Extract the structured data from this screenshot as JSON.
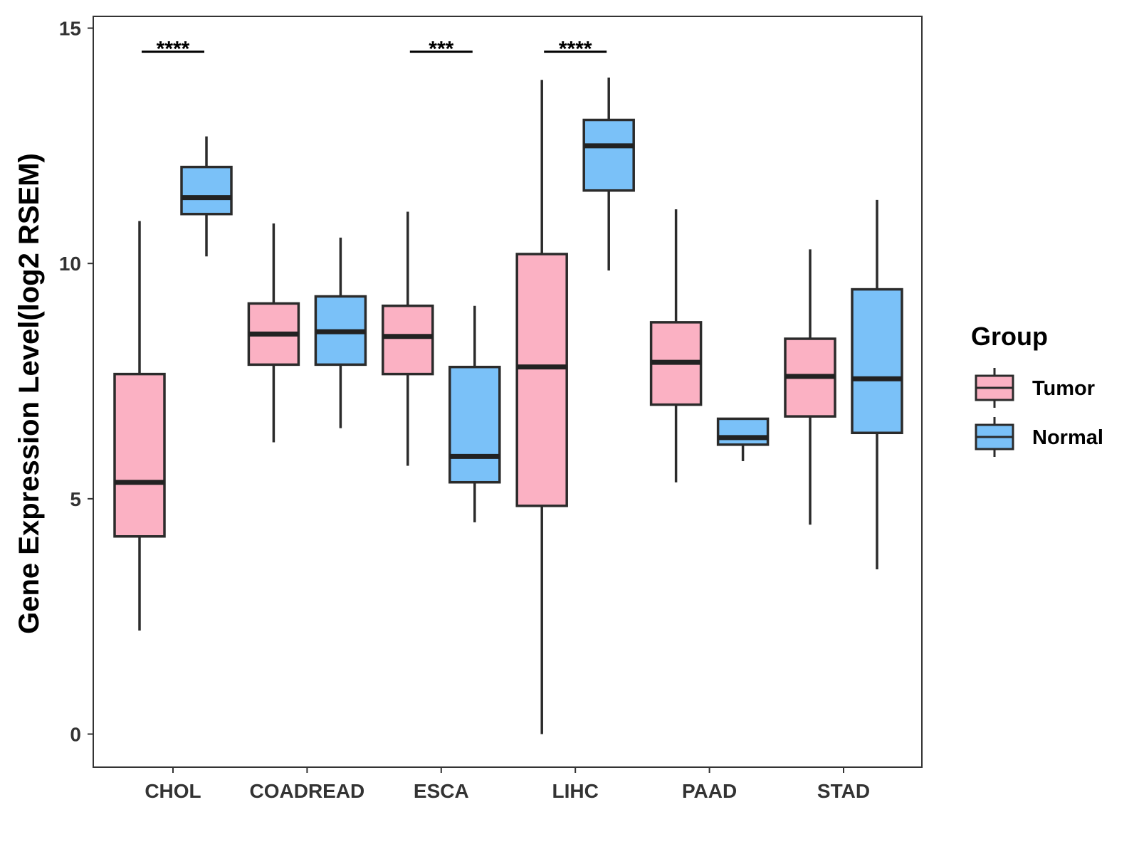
{
  "chart_data": {
    "type": "boxplot",
    "title": "",
    "xlabel": "",
    "ylabel": "Gene Expression Level(log2 RSEM)",
    "ylim": [
      -0.7,
      15.3
    ],
    "yticks": [
      "0",
      "5",
      "10",
      "15"
    ],
    "ytick_values": [
      0,
      5,
      10,
      15
    ],
    "categories": [
      "CHOL",
      "COADREAD",
      "ESCA",
      "LIHC",
      "PAAD",
      "STAD"
    ],
    "series": [
      {
        "name": "Tumor",
        "color": "#FBB1C3",
        "boxes": [
          {
            "min": 2.2,
            "q1": 4.2,
            "median": 5.35,
            "q3": 7.65,
            "max": 10.9
          },
          {
            "min": 6.2,
            "q1": 7.85,
            "median": 8.5,
            "q3": 9.15,
            "max": 10.85
          },
          {
            "min": 5.7,
            "q1": 7.65,
            "median": 8.45,
            "q3": 9.1,
            "max": 11.1
          },
          {
            "min": 0.0,
            "q1": 4.85,
            "median": 7.8,
            "q3": 10.2,
            "max": 13.9
          },
          {
            "min": 5.35,
            "q1": 7.0,
            "median": 7.9,
            "q3": 8.75,
            "max": 11.15
          },
          {
            "min": 4.45,
            "q1": 6.75,
            "median": 7.6,
            "q3": 8.4,
            "max": 10.3
          }
        ]
      },
      {
        "name": "Normal",
        "color": "#7AC1F8",
        "boxes": [
          {
            "min": 10.15,
            "q1": 11.05,
            "median": 11.4,
            "q3": 12.05,
            "max": 12.7
          },
          {
            "min": 6.5,
            "q1": 7.85,
            "median": 8.55,
            "q3": 9.3,
            "max": 10.55
          },
          {
            "min": 4.5,
            "q1": 5.35,
            "median": 5.9,
            "q3": 7.8,
            "max": 9.1
          },
          {
            "min": 9.85,
            "q1": 11.55,
            "median": 12.5,
            "q3": 13.05,
            "max": 13.95
          },
          {
            "min": 5.8,
            "q1": 6.15,
            "median": 6.3,
            "q3": 6.7,
            "max": 6.7
          },
          {
            "min": 3.5,
            "q1": 6.4,
            "median": 7.55,
            "q3": 9.45,
            "max": 11.35
          }
        ]
      }
    ],
    "annotations": [
      {
        "category": "CHOL",
        "label": "****",
        "y": 14.5
      },
      {
        "category": "ESCA",
        "label": "***",
        "y": 14.5
      },
      {
        "category": "LIHC",
        "label": "****",
        "y": 14.5
      }
    ],
    "legend": {
      "title": "Group",
      "position": "right"
    },
    "grid": false
  }
}
